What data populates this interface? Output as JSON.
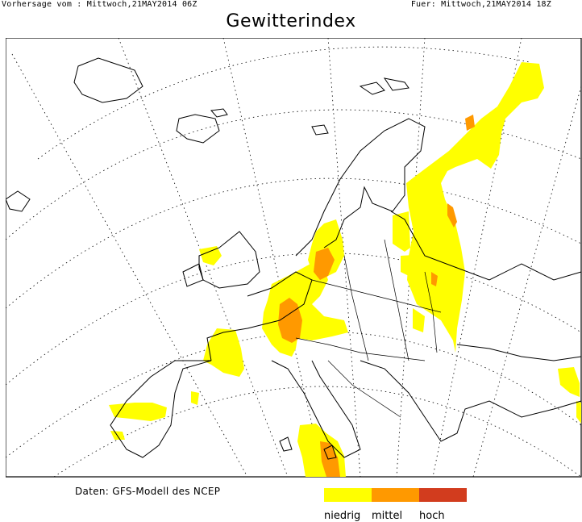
{
  "header": {
    "run_label": "Vorhersage vom : Mittwoch,21MAY2014 06Z",
    "valid_label": "Fuer: Mittwoch,21MAY2014 18Z"
  },
  "title": "Gewitterindex",
  "source": "Daten: GFS-Modell des NCEP",
  "legend": {
    "items": [
      {
        "label": "niedrig",
        "color": "#ffff00"
      },
      {
        "label": "mittel",
        "color": "#ff9900"
      },
      {
        "label": "hoch",
        "color": "#d23c1e"
      }
    ]
  },
  "map": {
    "region": "Europe",
    "background": "#ffffff",
    "coastline_color": "#000000",
    "graticule_color": "#000000"
  }
}
